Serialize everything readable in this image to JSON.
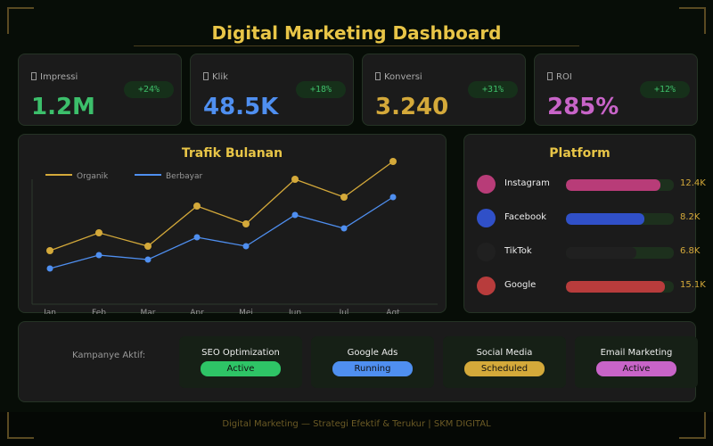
{
  "header": {
    "title": "Digital Marketing Dashboard"
  },
  "kpis": [
    {
      "label": "Impressi",
      "value": "1.2M",
      "change": "+24%",
      "color": "#3cbf6b",
      "icon": "missing-glyph-icon"
    },
    {
      "label": "Klik",
      "value": "48.5K",
      "change": "+18%",
      "color": "#4f8ff0",
      "icon": "missing-glyph-icon"
    },
    {
      "label": "Konversi",
      "value": "3.240",
      "change": "+31%",
      "color": "#d4a93a",
      "icon": "missing-glyph-icon"
    },
    {
      "label": "ROI",
      "value": "285%",
      "change": "+12%",
      "color": "#c864c8",
      "icon": "missing-glyph-icon"
    }
  ],
  "chart_data": {
    "type": "line",
    "title": "Trafik Bulanan",
    "categories": [
      "Jan",
      "Feb",
      "Mar",
      "Apr",
      "Mei",
      "Jun",
      "Jul",
      "Agt"
    ],
    "series": [
      {
        "name": "Organik",
        "color": "#d4a93a",
        "values": [
          60,
          80,
          65,
          110,
          90,
          140,
          120,
          160
        ]
      },
      {
        "name": "Berbayar",
        "color": "#4f8ff0",
        "values": [
          40,
          55,
          50,
          75,
          65,
          100,
          85,
          120
        ]
      }
    ],
    "ylim": [
      0,
      140
    ],
    "grid": false,
    "legend": "top-left"
  },
  "platform": {
    "title": "Platform",
    "items": [
      {
        "name": "Instagram",
        "value": "12.4K",
        "fraction": 0.88,
        "color": "#b83c78"
      },
      {
        "name": "Facebook",
        "value": "8.2K",
        "fraction": 0.73,
        "color": "#3050c8"
      },
      {
        "name": "TikTok",
        "value": "6.8K",
        "fraction": 0.65,
        "color": "#202020"
      },
      {
        "name": "Google",
        "value": "15.1K",
        "fraction": 0.92,
        "color": "#b83c3c"
      }
    ]
  },
  "campaigns": {
    "label": "Kampanye Aktif:",
    "items": [
      {
        "name": "SEO Optimization",
        "status": "Active",
        "color": "#2ec466"
      },
      {
        "name": "Google Ads",
        "status": "Running",
        "color": "#4f8ff0"
      },
      {
        "name": "Social Media",
        "status": "Scheduled",
        "color": "#d4a93a"
      },
      {
        "name": "Email Marketing",
        "status": "Active",
        "color": "#c864c8"
      }
    ]
  },
  "footer": {
    "text": "Digital Marketing — Strategi Efektif & Terukur | SKM DIGITAL"
  }
}
